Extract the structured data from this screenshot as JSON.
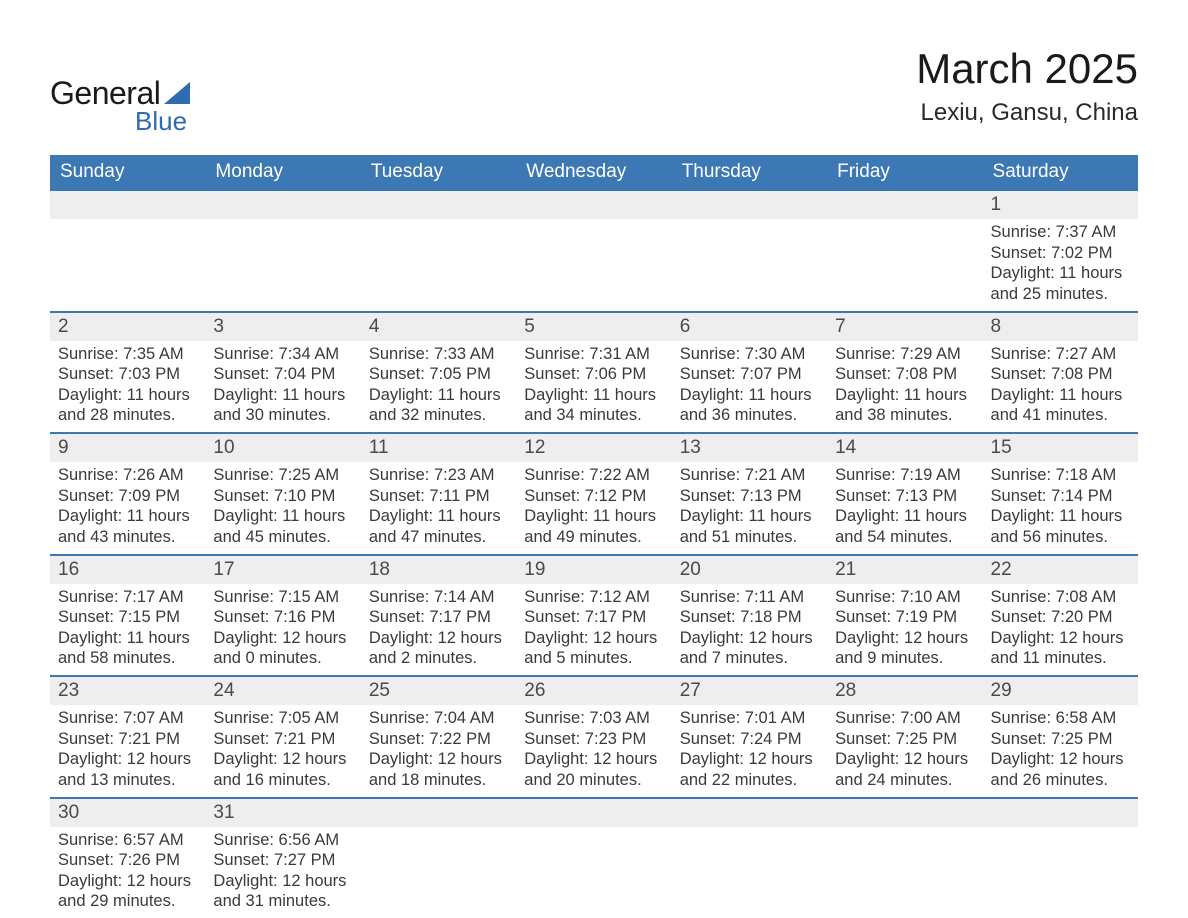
{
  "brand": {
    "name_part1": "General",
    "name_part2": "Blue",
    "icon_color": "#2e6bb0"
  },
  "title": "March 2025",
  "location": "Lexiu, Gansu, China",
  "colors": {
    "header_bg": "#3c78b4",
    "header_text": "#ffffff",
    "daynum_bg": "#eeeeee",
    "row_divider": "#3c78b4",
    "body_text": "#3a3a3a",
    "background": "#ffffff"
  },
  "day_headers": [
    "Sunday",
    "Monday",
    "Tuesday",
    "Wednesday",
    "Thursday",
    "Friday",
    "Saturday"
  ],
  "weeks": [
    {
      "days": [
        null,
        null,
        null,
        null,
        null,
        null,
        {
          "n": "1",
          "sunrise": "7:37 AM",
          "sunset": "7:02 PM",
          "daylight": "11 hours and 25 minutes."
        }
      ]
    },
    {
      "days": [
        {
          "n": "2",
          "sunrise": "7:35 AM",
          "sunset": "7:03 PM",
          "daylight": "11 hours and 28 minutes."
        },
        {
          "n": "3",
          "sunrise": "7:34 AM",
          "sunset": "7:04 PM",
          "daylight": "11 hours and 30 minutes."
        },
        {
          "n": "4",
          "sunrise": "7:33 AM",
          "sunset": "7:05 PM",
          "daylight": "11 hours and 32 minutes."
        },
        {
          "n": "5",
          "sunrise": "7:31 AM",
          "sunset": "7:06 PM",
          "daylight": "11 hours and 34 minutes."
        },
        {
          "n": "6",
          "sunrise": "7:30 AM",
          "sunset": "7:07 PM",
          "daylight": "11 hours and 36 minutes."
        },
        {
          "n": "7",
          "sunrise": "7:29 AM",
          "sunset": "7:08 PM",
          "daylight": "11 hours and 38 minutes."
        },
        {
          "n": "8",
          "sunrise": "7:27 AM",
          "sunset": "7:08 PM",
          "daylight": "11 hours and 41 minutes."
        }
      ]
    },
    {
      "days": [
        {
          "n": "9",
          "sunrise": "7:26 AM",
          "sunset": "7:09 PM",
          "daylight": "11 hours and 43 minutes."
        },
        {
          "n": "10",
          "sunrise": "7:25 AM",
          "sunset": "7:10 PM",
          "daylight": "11 hours and 45 minutes."
        },
        {
          "n": "11",
          "sunrise": "7:23 AM",
          "sunset": "7:11 PM",
          "daylight": "11 hours and 47 minutes."
        },
        {
          "n": "12",
          "sunrise": "7:22 AM",
          "sunset": "7:12 PM",
          "daylight": "11 hours and 49 minutes."
        },
        {
          "n": "13",
          "sunrise": "7:21 AM",
          "sunset": "7:13 PM",
          "daylight": "11 hours and 51 minutes."
        },
        {
          "n": "14",
          "sunrise": "7:19 AM",
          "sunset": "7:13 PM",
          "daylight": "11 hours and 54 minutes."
        },
        {
          "n": "15",
          "sunrise": "7:18 AM",
          "sunset": "7:14 PM",
          "daylight": "11 hours and 56 minutes."
        }
      ]
    },
    {
      "days": [
        {
          "n": "16",
          "sunrise": "7:17 AM",
          "sunset": "7:15 PM",
          "daylight": "11 hours and 58 minutes."
        },
        {
          "n": "17",
          "sunrise": "7:15 AM",
          "sunset": "7:16 PM",
          "daylight": "12 hours and 0 minutes."
        },
        {
          "n": "18",
          "sunrise": "7:14 AM",
          "sunset": "7:17 PM",
          "daylight": "12 hours and 2 minutes."
        },
        {
          "n": "19",
          "sunrise": "7:12 AM",
          "sunset": "7:17 PM",
          "daylight": "12 hours and 5 minutes."
        },
        {
          "n": "20",
          "sunrise": "7:11 AM",
          "sunset": "7:18 PM",
          "daylight": "12 hours and 7 minutes."
        },
        {
          "n": "21",
          "sunrise": "7:10 AM",
          "sunset": "7:19 PM",
          "daylight": "12 hours and 9 minutes."
        },
        {
          "n": "22",
          "sunrise": "7:08 AM",
          "sunset": "7:20 PM",
          "daylight": "12 hours and 11 minutes."
        }
      ]
    },
    {
      "days": [
        {
          "n": "23",
          "sunrise": "7:07 AM",
          "sunset": "7:21 PM",
          "daylight": "12 hours and 13 minutes."
        },
        {
          "n": "24",
          "sunrise": "7:05 AM",
          "sunset": "7:21 PM",
          "daylight": "12 hours and 16 minutes."
        },
        {
          "n": "25",
          "sunrise": "7:04 AM",
          "sunset": "7:22 PM",
          "daylight": "12 hours and 18 minutes."
        },
        {
          "n": "26",
          "sunrise": "7:03 AM",
          "sunset": "7:23 PM",
          "daylight": "12 hours and 20 minutes."
        },
        {
          "n": "27",
          "sunrise": "7:01 AM",
          "sunset": "7:24 PM",
          "daylight": "12 hours and 22 minutes."
        },
        {
          "n": "28",
          "sunrise": "7:00 AM",
          "sunset": "7:25 PM",
          "daylight": "12 hours and 24 minutes."
        },
        {
          "n": "29",
          "sunrise": "6:58 AM",
          "sunset": "7:25 PM",
          "daylight": "12 hours and 26 minutes."
        }
      ]
    },
    {
      "days": [
        {
          "n": "30",
          "sunrise": "6:57 AM",
          "sunset": "7:26 PM",
          "daylight": "12 hours and 29 minutes."
        },
        {
          "n": "31",
          "sunrise": "6:56 AM",
          "sunset": "7:27 PM",
          "daylight": "12 hours and 31 minutes."
        },
        null,
        null,
        null,
        null,
        null
      ]
    }
  ],
  "labels": {
    "sunrise": "Sunrise: ",
    "sunset": "Sunset: ",
    "daylight": "Daylight: "
  }
}
